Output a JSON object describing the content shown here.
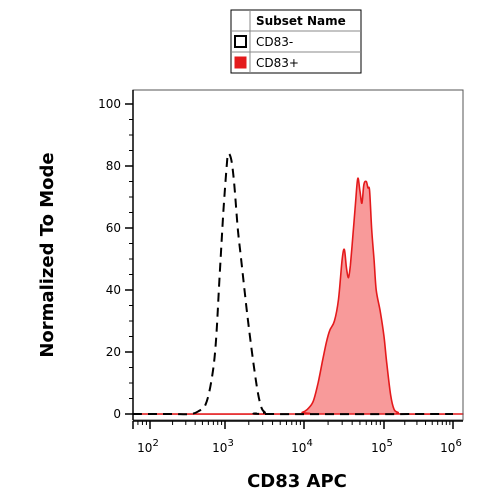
{
  "chart_data": {
    "type": "area",
    "xlabel": "CD83 APC",
    "ylabel": "Normalized To Mode",
    "xscale": "log",
    "xlim": [
      10,
      1000000
    ],
    "ylim": [
      0,
      100
    ],
    "x_tick_labels": [
      {
        "base": "10",
        "exp": "2",
        "value": 100
      },
      {
        "base": "10",
        "exp": "3",
        "value": 1000
      },
      {
        "base": "10",
        "exp": "4",
        "value": 10000
      },
      {
        "base": "10",
        "exp": "5",
        "value": 100000
      },
      {
        "base": "10",
        "exp": "6",
        "value": 1000000
      }
    ],
    "y_ticks": [
      0,
      20,
      40,
      60,
      80,
      100
    ],
    "y_tick_labels": [
      "0",
      "20",
      "40",
      "60",
      "80",
      "100"
    ],
    "grid": false,
    "legend": {
      "placement": "top-center",
      "header": "Subset Name",
      "entries": [
        "CD83-",
        "CD83+"
      ]
    },
    "series": [
      {
        "name": "CD83-",
        "style": "dashed-outline",
        "color": "#000000",
        "x": [
          11,
          100,
          200,
          350,
          450,
          550,
          650,
          750,
          850,
          950,
          1050,
          1100,
          1200,
          1300,
          1450,
          1600,
          1800,
          2000,
          2300,
          2600,
          2900,
          3200,
          3500,
          1000000
        ],
        "y": [
          0,
          0,
          0,
          0,
          1,
          3,
          10,
          22,
          45,
          65,
          80,
          84,
          82,
          75,
          60,
          50,
          38,
          28,
          16,
          7,
          2,
          0.5,
          0,
          0
        ]
      },
      {
        "name": "CD83+",
        "style": "filled",
        "color": "#e41a1c",
        "fill": "#f89a9a",
        "x": [
          11,
          8000,
          9500,
          11000,
          13000,
          15000,
          17000,
          19000,
          21000,
          24000,
          27000,
          30000,
          32000,
          34000,
          36000,
          38000,
          41000,
          44000,
          47000,
          50000,
          53000,
          56000,
          60000,
          63000,
          66000,
          70000,
          75000,
          80000,
          90000,
          100000,
          110000,
          125000,
          140000,
          160000,
          180000,
          1000000
        ],
        "y": [
          0,
          0,
          0.5,
          1.5,
          4,
          10,
          17,
          23,
          27,
          30,
          37,
          50,
          53,
          47,
          44,
          48,
          58,
          68,
          76,
          72,
          68,
          74,
          75,
          73,
          72,
          60,
          50,
          40,
          33,
          25,
          16,
          6,
          1.5,
          0.5,
          0,
          0
        ]
      }
    ]
  }
}
